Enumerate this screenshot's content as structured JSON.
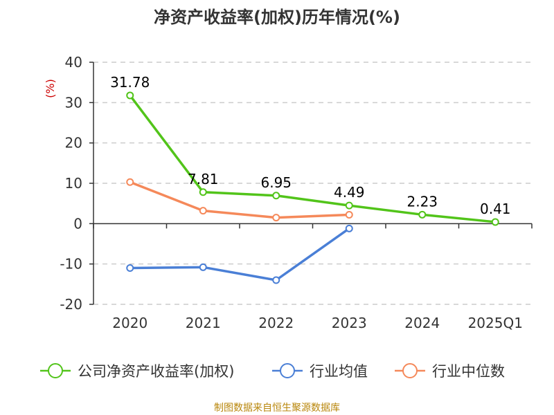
{
  "chart_data": {
    "type": "line",
    "title": "净资产收益率(加权)历年情况(%)",
    "ylabel": "(%)",
    "xlabel": "",
    "categories": [
      "2020",
      "2021",
      "2022",
      "2023",
      "2024",
      "2025Q1"
    ],
    "ylim": [
      -20,
      40
    ],
    "yticks": [
      40,
      30,
      20,
      10,
      0,
      -10,
      -20
    ],
    "grid": true,
    "legend_position": "bottom",
    "series": [
      {
        "name": "公司净资产收益率(加权)",
        "color": "#52c41a",
        "values": [
          31.78,
          7.81,
          6.95,
          4.49,
          2.23,
          0.41
        ],
        "labels": [
          "31.78",
          "7.81",
          "6.95",
          "4.49",
          "2.23",
          "0.41"
        ]
      },
      {
        "name": "行业均值",
        "color": "#4a7fd6",
        "values": [
          -11.0,
          -10.8,
          -14.0,
          -1.2,
          null,
          null
        ]
      },
      {
        "name": "行业中位数",
        "color": "#f5895a",
        "values": [
          10.3,
          3.2,
          1.5,
          2.2,
          null,
          null
        ]
      }
    ]
  },
  "source": "制图数据来自恒生聚源数据库"
}
